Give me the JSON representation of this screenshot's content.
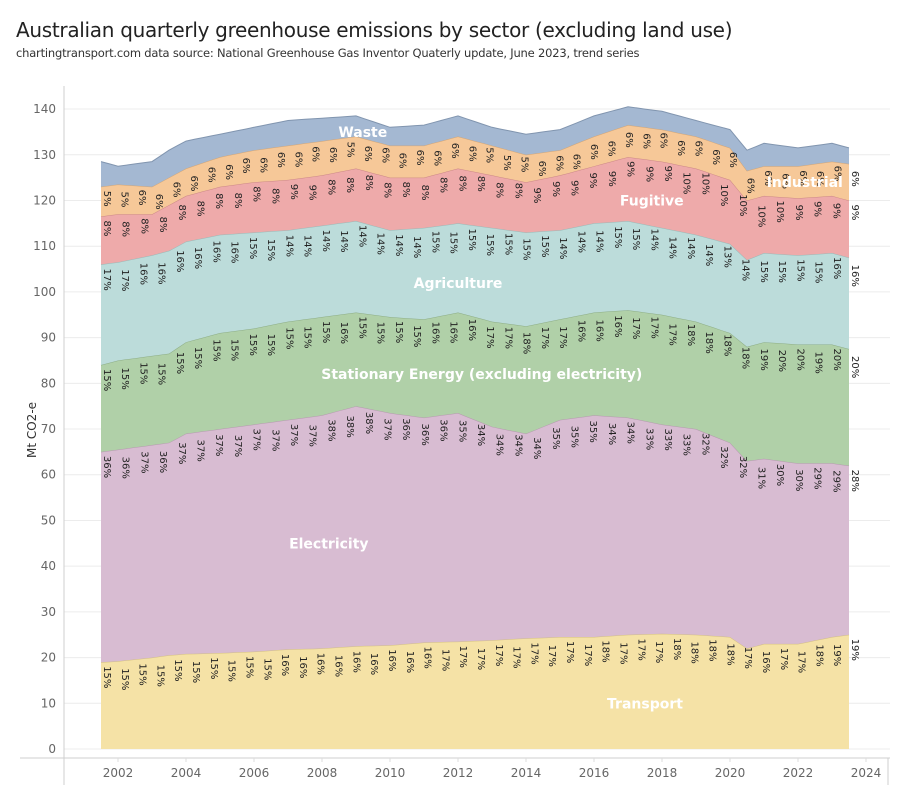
{
  "title": "Australian quarterly greenhouse emissions by sector (excluding land use)",
  "subtitle": "chartingtransport.com  data source: National Greenhouse Gas Inventor Quaterly update, June 2023, trend series",
  "chart_data": {
    "type": "area",
    "stacked": true,
    "title": "Australian quarterly greenhouse emissions by sector (excluding land use)",
    "xlabel": "",
    "ylabel": "Mt CO2-e",
    "xlim": [
      2000.5,
      2024.4
    ],
    "ylim": [
      0,
      145
    ],
    "x_ticks": [
      2002,
      2004,
      2006,
      2008,
      2010,
      2012,
      2014,
      2016,
      2018,
      2020,
      2022,
      2024
    ],
    "y_ticks": [
      0,
      10,
      20,
      30,
      40,
      50,
      60,
      70,
      80,
      90,
      100,
      110,
      120,
      130,
      140
    ],
    "grid": true,
    "legend": "inline-labels",
    "x": [
      2001.5,
      2002,
      2003,
      2003.5,
      2004,
      2005,
      2006,
      2007,
      2008,
      2009,
      2010,
      2011,
      2012,
      2013,
      2014,
      2015,
      2016,
      2017,
      2018,
      2019,
      2020,
      2020.5,
      2021,
      2022,
      2023,
      2023.5
    ],
    "series": [
      {
        "name": "Transport",
        "color": "#f5e2a6",
        "label_pos": [
          2017.5,
          10
        ],
        "values": [
          19,
          19.2,
          20,
          20.5,
          20.8,
          21,
          21.3,
          21.8,
          22,
          22.5,
          22.7,
          23.3,
          23.5,
          23.8,
          24.2,
          24.5,
          24.5,
          25,
          25.2,
          25,
          24.5,
          22,
          23,
          23,
          24.5,
          25
        ]
      },
      {
        "name": "Electricity",
        "color": "#d8bcd2",
        "label_pos": [
          2008.2,
          45
        ],
        "values": [
          46,
          46.3,
          46.5,
          46.5,
          48.2,
          49,
          49.7,
          50.2,
          51,
          52.5,
          50.8,
          49.2,
          50,
          46.7,
          44.8,
          47.5,
          48.5,
          47.5,
          45.8,
          45,
          42.5,
          41,
          40.5,
          39.5,
          38,
          37
        ]
      },
      {
        "name": "Stationary Energy (excluding electricity)",
        "color": "#b0d0a8",
        "label_pos": [
          2012.7,
          82
        ],
        "values": [
          19,
          19.5,
          19.5,
          19.5,
          20,
          21,
          21,
          21.5,
          21.5,
          20.5,
          21,
          21.5,
          22,
          23,
          23.5,
          22,
          22.5,
          23.5,
          24,
          23.5,
          24,
          25,
          25.5,
          26,
          26,
          25.5
        ]
      },
      {
        "name": "Agriculture",
        "color": "#bcdcda",
        "label_pos": [
          2012,
          102
        ],
        "values": [
          22,
          21.5,
          22,
          22.5,
          22,
          21.5,
          21,
          20,
          20,
          20,
          19,
          20,
          19.5,
          20.5,
          20.5,
          19.5,
          19.5,
          19.5,
          19,
          19,
          19.5,
          19,
          19.5,
          19.5,
          20,
          20
        ]
      },
      {
        "name": "Fugitive",
        "color": "#eeaaaa",
        "label_pos": [
          2017.7,
          120
        ],
        "values": [
          10.5,
          10.5,
          9,
          10,
          10,
          10.5,
          11,
          11,
          11,
          11.5,
          11.5,
          11,
          12,
          11.5,
          11,
          12,
          12.5,
          14,
          14.5,
          14.5,
          14,
          13,
          12.5,
          12.5,
          12.5,
          12.5
        ]
      },
      {
        "name": "Industrial",
        "color": "#f6c898",
        "label_pos": [
          2022.2,
          124
        ],
        "values": [
          6.5,
          6.5,
          6,
          6,
          6,
          6.5,
          7,
          7.5,
          7.5,
          7,
          7,
          7,
          7,
          6.5,
          6,
          5.5,
          6.5,
          7,
          7,
          7,
          7,
          6.5,
          6.5,
          7,
          7.5,
          8
        ]
      },
      {
        "name": "Waste",
        "color": "#a4b8d2",
        "label_pos": [
          2009.2,
          135
        ],
        "values": [
          5.5,
          4,
          5.5,
          6,
          6,
          5,
          5,
          5.5,
          5,
          4.5,
          4,
          4.5,
          4.5,
          4,
          4.5,
          4.5,
          4.5,
          4,
          4,
          3.5,
          4,
          4.5,
          5,
          4,
          4,
          3.5
        ]
      }
    ],
    "share_labels": {
      "Transport": [
        "15%",
        "15%",
        "15%",
        "15%",
        "15%",
        "15%",
        "15%",
        "15%",
        "15%",
        "15%",
        "16%",
        "16%",
        "16%",
        "16%",
        "16%",
        "16%",
        "16%",
        "16%",
        "16%",
        "17%",
        "17%",
        "17%",
        "17%",
        "17%",
        "17%",
        "17%",
        "17%",
        "17%",
        "18%",
        "17%",
        "17%",
        "17%",
        "18%",
        "18%",
        "18%",
        "18%",
        "17%",
        "16%",
        "17%",
        "17%",
        "18%",
        "19%",
        "19%"
      ],
      "Electricity": [
        "36%",
        "36%",
        "37%",
        "36%",
        "37%",
        "37%",
        "37%",
        "37%",
        "37%",
        "37%",
        "37%",
        "37%",
        "38%",
        "38%",
        "38%",
        "37%",
        "36%",
        "36%",
        "36%",
        "35%",
        "34%",
        "34%",
        "34%",
        "34%",
        "35%",
        "35%",
        "35%",
        "34%",
        "34%",
        "33%",
        "33%",
        "33%",
        "32%",
        "32%",
        "32%",
        "31%",
        "30%",
        "30%",
        "29%",
        "29%",
        "28%"
      ],
      "Stationary Energy (excluding electricity)": [
        "15%",
        "15%",
        "15%",
        "15%",
        "15%",
        "15%",
        "15%",
        "15%",
        "15%",
        "15%",
        "15%",
        "15%",
        "15%",
        "16%",
        "15%",
        "15%",
        "15%",
        "15%",
        "16%",
        "16%",
        "16%",
        "17%",
        "17%",
        "18%",
        "17%",
        "17%",
        "16%",
        "16%",
        "16%",
        "17%",
        "17%",
        "17%",
        "18%",
        "18%",
        "18%",
        "18%",
        "19%",
        "20%",
        "20%",
        "19%",
        "20%",
        "20%"
      ],
      "Agriculture": [
        "17%",
        "17%",
        "16%",
        "16%",
        "16%",
        "16%",
        "16%",
        "16%",
        "15%",
        "15%",
        "14%",
        "14%",
        "14%",
        "14%",
        "14%",
        "14%",
        "14%",
        "14%",
        "15%",
        "15%",
        "15%",
        "15%",
        "15%",
        "15%",
        "15%",
        "14%",
        "14%",
        "14%",
        "15%",
        "15%",
        "14%",
        "14%",
        "14%",
        "14%",
        "13%",
        "14%",
        "15%",
        "15%",
        "15%",
        "15%",
        "16%",
        "16%"
      ],
      "Fugitive": [
        "8%",
        "8%",
        "8%",
        "8%",
        "8%",
        "8%",
        "8%",
        "8%",
        "8%",
        "8%",
        "9%",
        "9%",
        "8%",
        "8%",
        "8%",
        "8%",
        "8%",
        "8%",
        "8%",
        "8%",
        "8%",
        "8%",
        "8%",
        "9%",
        "9%",
        "9%",
        "9%",
        "9%",
        "9%",
        "9%",
        "9%",
        "10%",
        "10%",
        "10%",
        "10%",
        "10%",
        "10%",
        "9%",
        "9%",
        "9%",
        "9%"
      ],
      "Industrial": [
        "5%",
        "5%",
        "6%",
        "6%",
        "6%",
        "6%",
        "6%",
        "6%",
        "6%",
        "6%",
        "6%",
        "6%",
        "6%",
        "6%",
        "5%",
        "6%",
        "6%",
        "6%",
        "6%",
        "6%",
        "6%",
        "6%",
        "5%",
        "5%",
        "5%",
        "6%",
        "6%",
        "6%",
        "6%",
        "6%",
        "6%",
        "6%",
        "6%",
        "6%",
        "6%",
        "6%",
        "6%",
        "6%",
        "6%",
        "6%",
        "6%",
        "6%",
        "6%",
        "6%"
      ]
    }
  }
}
